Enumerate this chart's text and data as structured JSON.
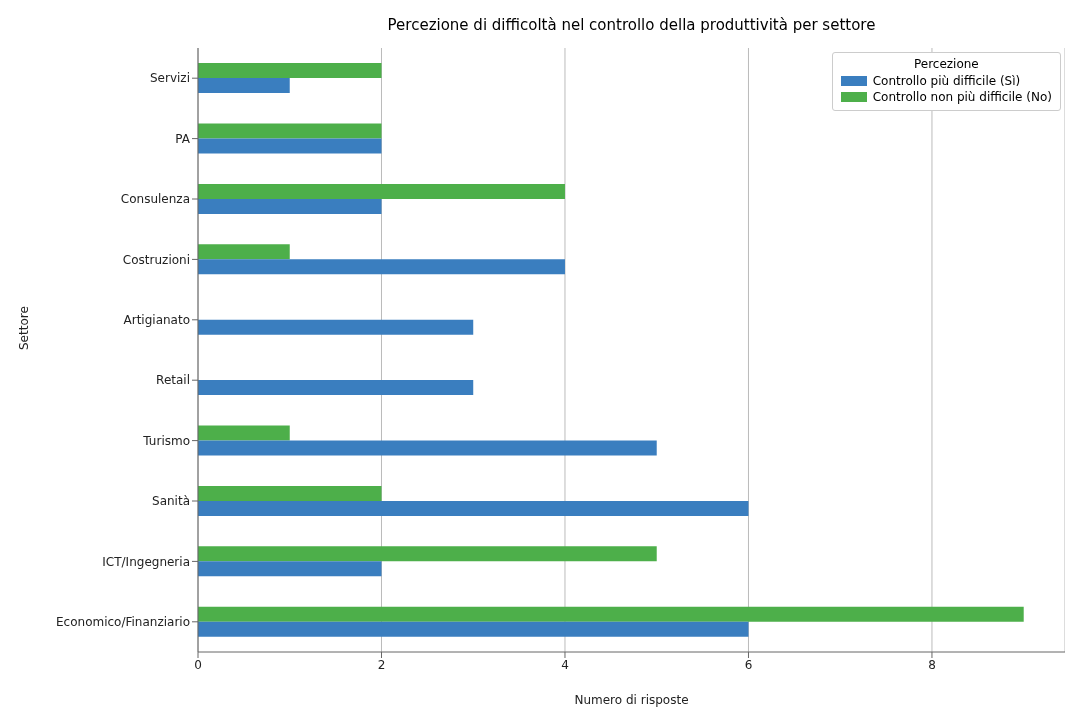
{
  "chart_data": {
    "type": "bar",
    "orientation": "horizontal",
    "title": "Percezione di difficoltà nel controllo della produttività per settore",
    "xlabel": "Numero di risposte",
    "ylabel": "Settore",
    "legend_title": "Percezione",
    "categories": [
      "Servizi",
      "PA",
      "Consulenza",
      "Costruzioni",
      "Artigianato",
      "Retail",
      "Turismo",
      "Sanità",
      "ICT/Ingegneria",
      "Economico/Finanziario"
    ],
    "series": [
      {
        "name": "Controllo più difficile (Sì)",
        "color": "#3a7ebf",
        "values": [
          1,
          2,
          2,
          4,
          3,
          3,
          5,
          6,
          2,
          6
        ]
      },
      {
        "name": "Controllo non più difficile (No)",
        "color": "#4daf4a",
        "values": [
          2,
          2,
          4,
          1,
          0,
          0,
          1,
          2,
          5,
          9
        ]
      }
    ],
    "xlim": [
      0,
      9.45
    ],
    "xticks": [
      0,
      2,
      4,
      6,
      8
    ],
    "grid": "x",
    "legend": "top right"
  }
}
